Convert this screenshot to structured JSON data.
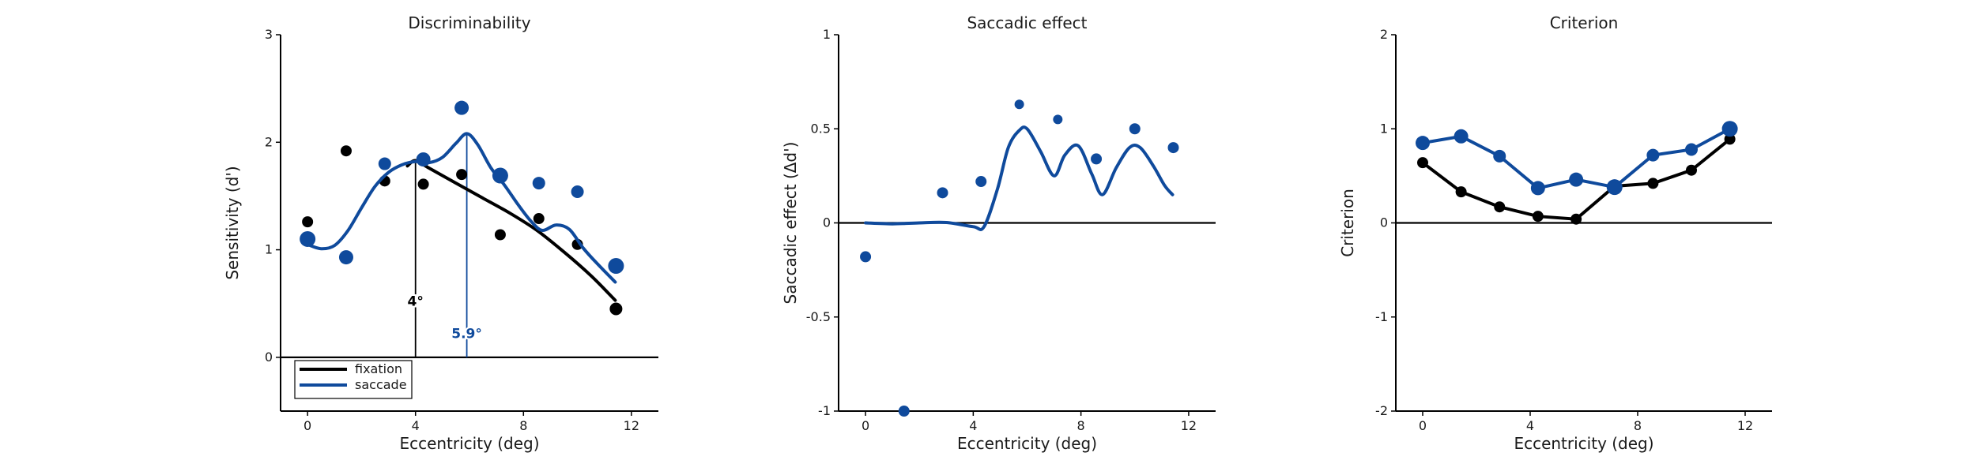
{
  "colors": {
    "fixation": "#000000",
    "saccade": "#0f4a9c"
  },
  "chart_data": [
    {
      "type": "scatter",
      "title": "Discriminability",
      "xlabel": "Eccentricity (deg)",
      "ylabel": "Sensitivity (d')",
      "xlim": [
        -1,
        13
      ],
      "ylim": [
        -0.5,
        3
      ],
      "xticks": [
        0,
        4,
        8,
        12
      ],
      "yticks": [
        0,
        1,
        2,
        3
      ],
      "zero_line": true,
      "legend": {
        "placement": "bottom-left",
        "entries": [
          "fixation",
          "saccade"
        ]
      },
      "series": [
        {
          "name": "fixation",
          "points": {
            "x": [
              0,
              1.43,
              2.86,
              4.29,
              5.71,
              7.14,
              8.57,
              10.0,
              11.43
            ],
            "y": [
              1.26,
              1.92,
              1.64,
              1.61,
              1.7,
              1.14,
              1.29,
              1.05,
              0.45
            ],
            "size": [
              5,
              5,
              5,
              5,
              5,
              5,
              5,
              5,
              6
            ]
          },
          "fit": {
            "x": [
              3.7,
              4.0,
              4.5,
              5.5,
              6.5,
              7.5,
              8.5,
              9.5,
              10.5,
              11.4
            ],
            "y": [
              1.78,
              1.83,
              1.76,
              1.62,
              1.48,
              1.34,
              1.18,
              0.98,
              0.76,
              0.53
            ]
          }
        },
        {
          "name": "saccade",
          "points": {
            "x": [
              0,
              1.43,
              2.86,
              4.29,
              5.71,
              7.14,
              8.57,
              10.0,
              11.43
            ],
            "y": [
              1.1,
              0.93,
              1.8,
              1.84,
              2.32,
              1.69,
              1.62,
              1.54,
              0.85
            ],
            "size": [
              8,
              7,
              6,
              7,
              7,
              8,
              6,
              6,
              8
            ]
          },
          "fit": {
            "x": [
              0,
              0.5,
              1.0,
              1.5,
              2.0,
              2.5,
              3.0,
              3.5,
              4.0,
              4.5,
              5.0,
              5.5,
              5.9,
              6.3,
              6.8,
              7.3,
              7.8,
              8.3,
              8.7,
              9.2,
              9.7,
              10.2,
              10.7,
              11.4
            ],
            "y": [
              1.05,
              1.01,
              1.04,
              1.18,
              1.39,
              1.59,
              1.72,
              1.79,
              1.82,
              1.81,
              1.86,
              1.99,
              2.08,
              1.98,
              1.76,
              1.6,
              1.42,
              1.26,
              1.18,
              1.23,
              1.19,
              1.02,
              0.88,
              0.7
            ]
          }
        }
      ],
      "annotations": [
        {
          "text": "4°",
          "x": 4.0,
          "series": "fixation"
        },
        {
          "text": "5.9°",
          "x": 5.9,
          "series": "saccade"
        }
      ]
    },
    {
      "type": "scatter",
      "title": "Saccadic effect",
      "xlabel": "Eccentricity (deg)",
      "ylabel": "Saccadic effect (Δd')",
      "xlim": [
        -1,
        13
      ],
      "ylim": [
        -1,
        1
      ],
      "xticks": [
        0,
        4,
        8,
        12
      ],
      "yticks": [
        -1,
        -0.5,
        0,
        0.5,
        1
      ],
      "ytick_labels": [
        "-1",
        "-0.5",
        "0",
        "0.5",
        "1"
      ],
      "zero_line": true,
      "series": [
        {
          "name": "saccade",
          "points": {
            "x": [
              0,
              1.43,
              2.86,
              4.29,
              5.71,
              7.14,
              8.57,
              10.0,
              11.43
            ],
            "y": [
              -0.18,
              -1.0,
              0.16,
              0.22,
              0.63,
              0.55,
              0.34,
              0.5,
              0.4
            ],
            "size": [
              5,
              5,
              5,
              5,
              4,
              4,
              5,
              5,
              5
            ]
          },
          "fit": {
            "x": [
              0,
              1,
              2,
              3,
              4,
              4.4,
              4.9,
              5.3,
              5.7,
              6.0,
              6.5,
              7.0,
              7.4,
              7.9,
              8.4,
              8.8,
              9.3,
              9.8,
              10.2,
              10.7,
              11.1,
              11.4
            ],
            "y": [
              0,
              -0.005,
              0,
              0.002,
              -0.02,
              -0.02,
              0.18,
              0.4,
              0.49,
              0.5,
              0.38,
              0.25,
              0.36,
              0.41,
              0.26,
              0.15,
              0.29,
              0.4,
              0.4,
              0.3,
              0.2,
              0.15
            ]
          }
        }
      ]
    },
    {
      "type": "line",
      "title": "Criterion",
      "xlabel": "Eccentricity (deg)",
      "ylabel": "Criterion",
      "xlim": [
        -1,
        13
      ],
      "ylim": [
        -2,
        2
      ],
      "xticks": [
        0,
        4,
        8,
        12
      ],
      "yticks": [
        -2,
        -1,
        0,
        1,
        2
      ],
      "zero_line": true,
      "series": [
        {
          "name": "fixation",
          "points": {
            "x": [
              0,
              1.43,
              2.86,
              4.29,
              5.71,
              7.14,
              8.57,
              10.0,
              11.43
            ],
            "y": [
              0.64,
              0.33,
              0.17,
              0.07,
              0.04,
              0.39,
              0.42,
              0.56,
              0.89
            ],
            "size": [
              5,
              5,
              5,
              5,
              5,
              5,
              5,
              5,
              5
            ]
          }
        },
        {
          "name": "saccade",
          "points": {
            "x": [
              0,
              1.43,
              2.86,
              4.29,
              5.71,
              7.14,
              8.57,
              10.0,
              11.43
            ],
            "y": [
              0.85,
              0.92,
              0.71,
              0.37,
              0.46,
              0.38,
              0.72,
              0.78,
              1.0
            ],
            "size": [
              7,
              7,
              6,
              7,
              7,
              8,
              6,
              6,
              8
            ]
          }
        }
      ]
    }
  ]
}
